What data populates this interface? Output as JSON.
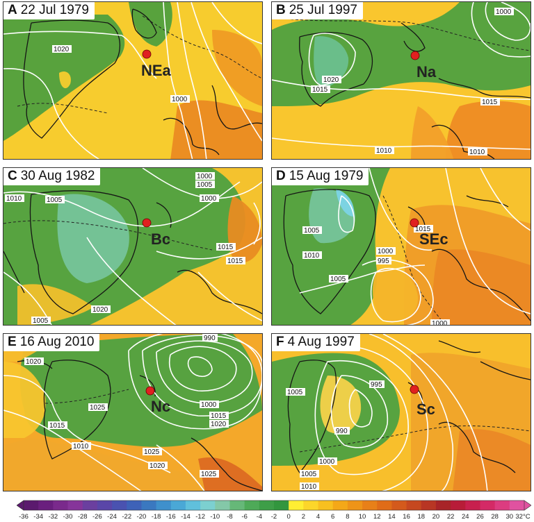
{
  "panels": [
    {
      "id": "A",
      "letter": "A",
      "date": "22 Jul 1979",
      "station": "NEa",
      "pressures": [
        "1020",
        "1000"
      ]
    },
    {
      "id": "B",
      "letter": "B",
      "date": "25 Jul 1997",
      "station": "Na",
      "pressures": [
        "1000",
        "1020",
        "1015",
        "1015",
        "1010",
        "1010"
      ]
    },
    {
      "id": "C",
      "letter": "C",
      "date": "30 Aug 1982",
      "station": "Bc",
      "pressures": [
        "1000",
        "1005",
        "1010",
        "1005",
        "1000",
        "1015",
        "1015",
        "1020",
        "1005"
      ]
    },
    {
      "id": "D",
      "letter": "D",
      "date": "15 Aug 1979",
      "station": "SEc",
      "pressures": [
        "1005",
        "1015",
        "1010",
        "1000",
        "995",
        "1005",
        "1000"
      ]
    },
    {
      "id": "E",
      "letter": "E",
      "date": "16 Aug 2010",
      "station": "Nc",
      "pressures": [
        "990",
        "1020",
        "1025",
        "1000",
        "1015",
        "1020",
        "1015",
        "1010",
        "1025",
        "1020",
        "1025"
      ]
    },
    {
      "id": "F",
      "letter": "F",
      "date": "4 Aug 1997",
      "station": "Sc",
      "pressures": [
        "1005",
        "995",
        "990",
        "1000",
        "1005",
        "1010"
      ]
    }
  ],
  "colorbar": {
    "ticks": [
      "-36",
      "-34",
      "-32",
      "-30",
      "-28",
      "-26",
      "-24",
      "-22",
      "-20",
      "-18",
      "-16",
      "-14",
      "-12",
      "-10",
      "-8",
      "-6",
      "-4",
      "-2",
      "0",
      "2",
      "4",
      "6",
      "8",
      "10",
      "12",
      "14",
      "16",
      "18",
      "20",
      "22",
      "24",
      "26",
      "28",
      "30",
      "32°C"
    ],
    "colors": [
      "#5b1a6e",
      "#6a1f7e",
      "#7a2a8c",
      "#86359a",
      "#6b3f9f",
      "#5a46a8",
      "#4a52b0",
      "#3e62b8",
      "#3a78c0",
      "#3f90cc",
      "#4aa8d6",
      "#60c0dc",
      "#7cd0d0",
      "#84c8a8",
      "#66b878",
      "#4eaa58",
      "#3e9e48",
      "#32963e",
      "#ffee33",
      "#fcd62a",
      "#f8c020",
      "#f4a818",
      "#ee9418",
      "#e88018",
      "#e06c18",
      "#d45a1c",
      "#c64820",
      "#b83624",
      "#a82428",
      "#b81c38",
      "#c8204e",
      "#d42a66",
      "#dc3c80",
      "#e052a0"
    ],
    "min_label": "-36",
    "max_label": "32°C"
  }
}
